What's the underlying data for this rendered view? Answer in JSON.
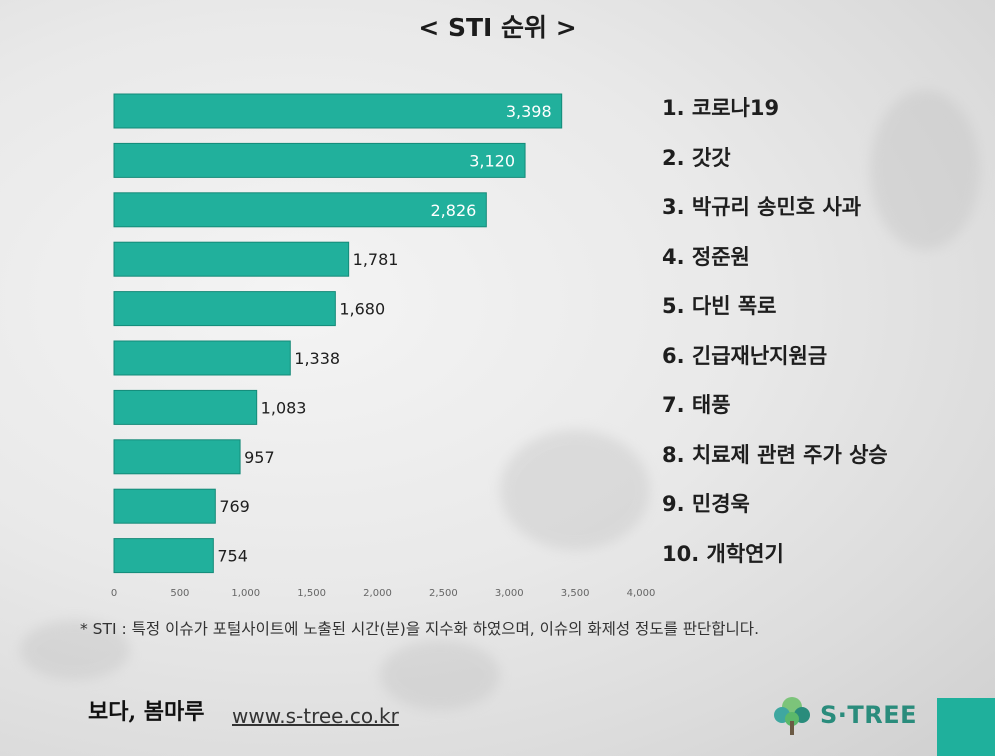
{
  "title": "< STI 순위 >",
  "chart_data": {
    "type": "bar",
    "orientation": "horizontal",
    "categories": [
      "코로나19",
      "갓갓",
      "박규리 송민호 사과",
      "정준원",
      "다빈 폭로",
      "긴급재난지원금",
      "태풍",
      "치료제 관련 주가 상승",
      "민경욱",
      "개학연기"
    ],
    "values": [
      3398,
      3120,
      2826,
      1781,
      1680,
      1338,
      1083,
      957,
      769,
      754
    ],
    "value_labels": [
      "3,398",
      "3,120",
      "2,826",
      "1,781",
      "1,680",
      "1,338",
      "1,083",
      "957",
      "769",
      "754"
    ],
    "xlim": [
      0,
      4000
    ],
    "x_ticks": [
      0,
      500,
      1000,
      1500,
      2000,
      2500,
      3000,
      3500,
      4000
    ],
    "x_tick_labels": [
      "0",
      "500",
      "1,000",
      "1,500",
      "2,000",
      "2,500",
      "3,000",
      "3,500",
      "4,000"
    ],
    "bar_color": "#21b09c",
    "grid": false
  },
  "ranking": [
    {
      "label": "1. 코로나19"
    },
    {
      "label": "2. 갓갓"
    },
    {
      "label": "3. 박규리 송민호 사과"
    },
    {
      "label": "4. 정준원"
    },
    {
      "label": "5. 다빈 폭로"
    },
    {
      "label": "6. 긴급재난지원금"
    },
    {
      "label": "7. 태풍"
    },
    {
      "label": "8. 치료제 관련 주가 상승"
    },
    {
      "label": "9. 민경욱"
    },
    {
      "label": "10. 개학연기"
    }
  ],
  "footnote": "* STI : 특정 이슈가 포털사이트에 노출된 시간(분)을 지수화 하였으며, 이슈의 화제성 정도를 판단합니다.",
  "footer": {
    "signature": "보다, 봄마루",
    "url": "www.s-tree.co.kr",
    "logo_text": "S·TREE",
    "logo_icon": "tree-icon"
  },
  "colors": {
    "accent": "#21b09c",
    "logo": "#2a8c7c"
  }
}
